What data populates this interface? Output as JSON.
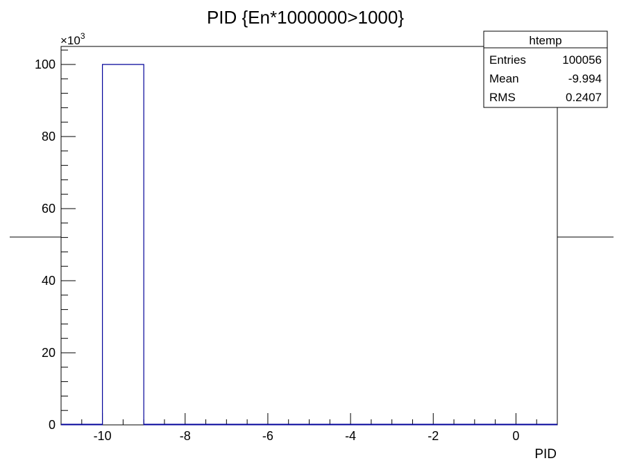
{
  "chart_data": {
    "type": "bar",
    "title": "PID {En*1000000>1000}",
    "xlabel": "PID",
    "ylabel": "",
    "y_multiplier_label": "×10",
    "y_multiplier_exponent": "3",
    "xlim": [
      -11,
      1
    ],
    "ylim": [
      0,
      105
    ],
    "x_major_ticks": [
      -10,
      -8,
      -6,
      -4,
      -2,
      0
    ],
    "x_minor_step": 0.5,
    "y_major_ticks": [
      0,
      20,
      40,
      60,
      80,
      100
    ],
    "y_minor_step": 4,
    "bins": [
      {
        "x_low": -10,
        "x_high": -9,
        "value": 100.0
      },
      {
        "x_low": -9,
        "x_high": 1,
        "value": 0
      }
    ],
    "grid": false,
    "legend": "none",
    "colors": {
      "histogram": "#000099",
      "axes": "#000000"
    }
  },
  "stats_box": {
    "title": "htemp",
    "rows": [
      {
        "label": "Entries",
        "value": "100056"
      },
      {
        "label": "Mean",
        "value": "-9.994"
      },
      {
        "label": "RMS",
        "value": "0.2407"
      }
    ]
  }
}
